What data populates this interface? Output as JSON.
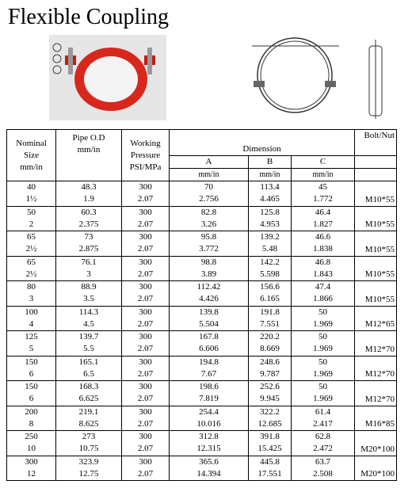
{
  "header": {
    "title": "Flexible Coupling"
  },
  "table": {
    "columns": {
      "size": [
        "Nominal",
        "Size",
        "mm/in"
      ],
      "od": [
        "Pipe O.D",
        "mm/in"
      ],
      "pressure": [
        "Working",
        "Pressure",
        "PSI/MPa"
      ],
      "dimension": "Dimension",
      "a": "A",
      "b": "B",
      "c": "C",
      "units": [
        "mm/in",
        "mm/in",
        "mm/in"
      ],
      "bolt": "Bolt/Nut"
    },
    "rows": [
      [
        "40",
        "1½",
        "48.3",
        "1.9",
        "300",
        "2.07",
        "70",
        "2.756",
        "113.4",
        "4.465",
        "45",
        "1.772",
        "M10*55"
      ],
      [
        "50",
        "2",
        "60.3",
        "2.375",
        "300",
        "2.07",
        "82.8",
        "3.26",
        "125.8",
        "4.953",
        "46.4",
        "1.827",
        "M10*55"
      ],
      [
        "65",
        "2½",
        "73",
        "2.875",
        "300",
        "2.07",
        "95.8",
        "3.772",
        "139.2",
        "5.48",
        "46.6",
        "1.838",
        "M10*55"
      ],
      [
        "65",
        "2½",
        "76.1",
        "3",
        "300",
        "2.07",
        "98.8",
        "3.89",
        "142.2",
        "5.598",
        "46.8",
        "1.843",
        "M10*55"
      ],
      [
        "80",
        "3",
        "88.9",
        "3.5",
        "300",
        "2.07",
        "112.42",
        "4.426",
        "156.6",
        "6.165",
        "47.4",
        "1.866",
        "M10*55"
      ],
      [
        "100",
        "4",
        "114.3",
        "4.5",
        "300",
        "2.07",
        "139.8",
        "5.504",
        "191.8",
        "7.551",
        "50",
        "1.969",
        "M12*65"
      ],
      [
        "125",
        "5",
        "139.7",
        "5.5",
        "300",
        "2.07",
        "167.8",
        "6.606",
        "220.2",
        "8.669",
        "50",
        "1.969",
        "M12*70"
      ],
      [
        "150",
        "6",
        "165.1",
        "6.5",
        "300",
        "2.07",
        "194.8",
        "7.67",
        "248.6",
        "9.787",
        "50",
        "1.969",
        "M12*70"
      ],
      [
        "150",
        "6",
        "168.3",
        "6.625",
        "300",
        "2.07",
        "198.6",
        "7.819",
        "252.6",
        "9.945",
        "50",
        "1.969",
        "M12*70"
      ],
      [
        "200",
        "8",
        "219.1",
        "8.625",
        "300",
        "2.07",
        "254.4",
        "10.016",
        "322.2",
        "12.685",
        "61.4",
        "2.417",
        "M16*85"
      ],
      [
        "250",
        "10",
        "273",
        "10.75",
        "300",
        "2.07",
        "312.8",
        "12.315",
        "391.8",
        "15.425",
        "62.8",
        "2.472",
        "M20*100"
      ],
      [
        "300",
        "12",
        "323.9",
        "12.75",
        "300",
        "2.07",
        "365.6",
        "14.394",
        "445.8",
        "17.551",
        "63.7",
        "2.508",
        "M20*100"
      ]
    ]
  }
}
